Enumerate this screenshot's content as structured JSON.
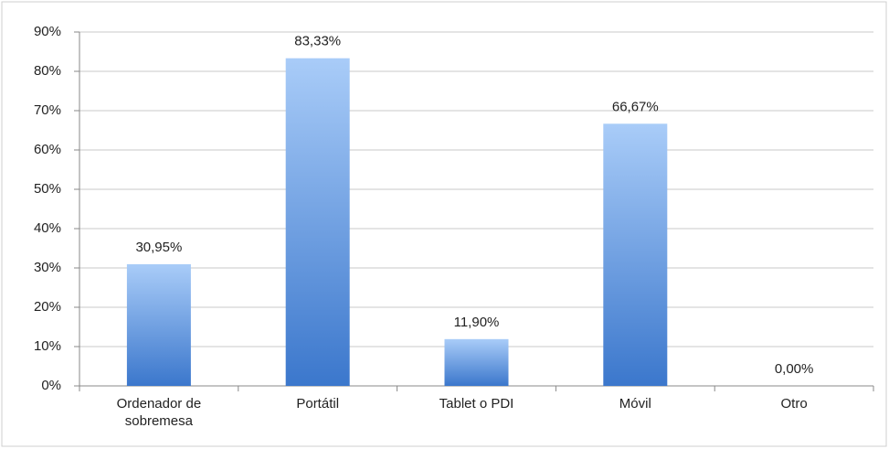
{
  "chart_data": {
    "type": "bar",
    "categories": [
      "Ordenador de sobremesa",
      "Portátil",
      "Tablet o PDI",
      "Móvil",
      "Otro"
    ],
    "values": [
      30.95,
      83.33,
      11.9,
      66.67,
      0.0
    ],
    "value_labels": [
      "30,95%",
      "83,33%",
      "11,90%",
      "66,67%",
      "0,00%"
    ],
    "gradient": [
      "#a9ccf8",
      "#3b77cc"
    ],
    "ylim": [
      0,
      90
    ],
    "yticks": [
      {
        "value": 0,
        "label": "0%"
      },
      {
        "value": 10,
        "label": "10%"
      },
      {
        "value": 20,
        "label": "20%"
      },
      {
        "value": 30,
        "label": "30%"
      },
      {
        "value": 40,
        "label": "40%"
      },
      {
        "value": 50,
        "label": "50%"
      },
      {
        "value": 60,
        "label": "60%"
      },
      {
        "value": 70,
        "label": "70%"
      },
      {
        "value": 80,
        "label": "80%"
      },
      {
        "value": 90,
        "label": "90%"
      }
    ],
    "grid": true
  }
}
